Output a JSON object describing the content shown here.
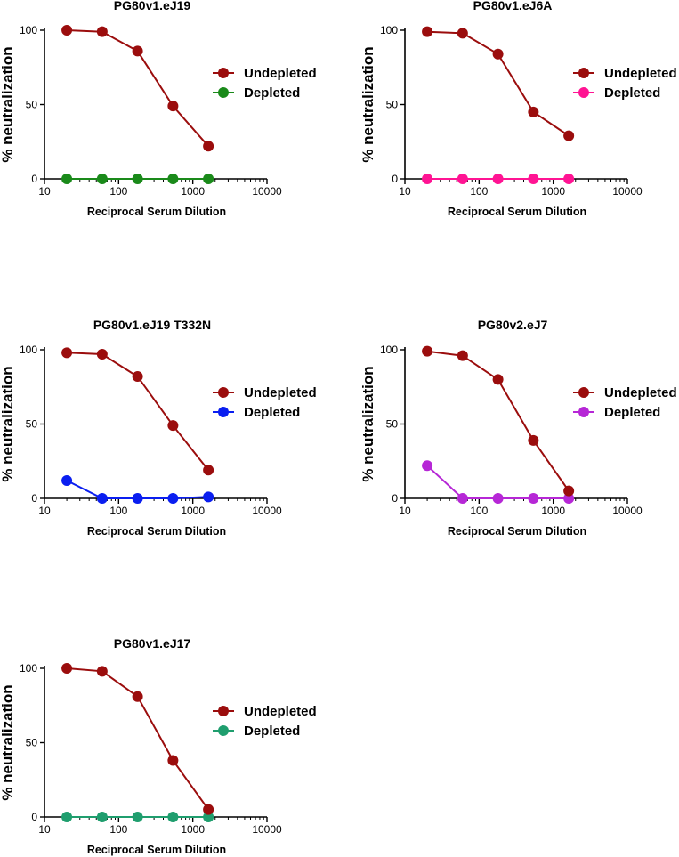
{
  "chart_data": [
    {
      "type": "line",
      "title": "PG80v1.eJ19",
      "xlabel": "Reciprocal Serum Dilution",
      "ylabel": "% neutralization",
      "xscale": "log",
      "xlim": [
        10,
        10000
      ],
      "ylim": [
        0,
        100
      ],
      "xticks": [
        "10",
        "100",
        "1000",
        "10000"
      ],
      "yticks": [
        "0",
        "50",
        "100"
      ],
      "legend_position": "right",
      "x": [
        20,
        60,
        180,
        540,
        1620
      ],
      "series": [
        {
          "name": "Undepleted",
          "color": "#9b0d0d",
          "values": [
            100,
            99,
            86,
            49,
            22
          ]
        },
        {
          "name": "Depleted",
          "color": "#1a8a1a",
          "values": [
            0,
            0,
            0,
            0,
            0
          ]
        }
      ]
    },
    {
      "type": "line",
      "title": "PG80v1.eJ6A",
      "xlabel": "Reciprocal Serum Dilution",
      "ylabel": "% neutralization",
      "xscale": "log",
      "xlim": [
        10,
        10000
      ],
      "ylim": [
        0,
        100
      ],
      "xticks": [
        "10",
        "100",
        "1000",
        "10000"
      ],
      "yticks": [
        "0",
        "50",
        "100"
      ],
      "legend_position": "right",
      "x": [
        20,
        60,
        180,
        540,
        1620
      ],
      "series": [
        {
          "name": "Undepleted",
          "color": "#9b0d0d",
          "values": [
            99,
            98,
            84,
            45,
            29
          ]
        },
        {
          "name": "Depleted",
          "color": "#ff1493",
          "values": [
            0,
            0,
            0,
            0,
            0
          ]
        }
      ]
    },
    {
      "type": "line",
      "title": "PG80v1.eJ19 T332N",
      "xlabel": "Reciprocal Serum Dilution",
      "ylabel": "% neutralization",
      "xscale": "log",
      "xlim": [
        10,
        10000
      ],
      "ylim": [
        0,
        100
      ],
      "xticks": [
        "10",
        "100",
        "1000",
        "10000"
      ],
      "yticks": [
        "0",
        "50",
        "100"
      ],
      "legend_position": "right",
      "x": [
        20,
        60,
        180,
        540,
        1620
      ],
      "series": [
        {
          "name": "Undepleted",
          "color": "#9b0d0d",
          "values": [
            98,
            97,
            82,
            49,
            19
          ]
        },
        {
          "name": "Depleted",
          "color": "#0a1ef0",
          "values": [
            12,
            0,
            0,
            0,
            1
          ]
        }
      ]
    },
    {
      "type": "line",
      "title": "PG80v2.eJ7",
      "xlabel": "Reciprocal Serum Dilution",
      "ylabel": "% neutralization",
      "xscale": "log",
      "xlim": [
        10,
        10000
      ],
      "ylim": [
        0,
        100
      ],
      "xticks": [
        "10",
        "100",
        "1000",
        "10000"
      ],
      "yticks": [
        "0",
        "50",
        "100"
      ],
      "legend_position": "right",
      "x": [
        20,
        60,
        180,
        540,
        1620
      ],
      "series": [
        {
          "name": "Undepleted",
          "color": "#9b0d0d",
          "values": [
            99,
            96,
            80,
            39,
            5
          ]
        },
        {
          "name": "Depleted",
          "color": "#b627d6",
          "values": [
            22,
            0,
            0,
            0,
            0
          ]
        }
      ]
    },
    {
      "type": "line",
      "title": "PG80v1.eJ17",
      "xlabel": "Reciprocal Serum Dilution",
      "ylabel": "% neutralization",
      "xscale": "log",
      "xlim": [
        10,
        10000
      ],
      "ylim": [
        0,
        100
      ],
      "xticks": [
        "10",
        "100",
        "1000",
        "10000"
      ],
      "yticks": [
        "0",
        "50",
        "100"
      ],
      "legend_position": "right",
      "x": [
        20,
        60,
        180,
        540,
        1620
      ],
      "series": [
        {
          "name": "Undepleted",
          "color": "#9b0d0d",
          "values": [
            100,
            98,
            81,
            38,
            5
          ]
        },
        {
          "name": "Depleted",
          "color": "#1f9e6e",
          "values": [
            0,
            0,
            0,
            0,
            0
          ]
        }
      ]
    }
  ]
}
